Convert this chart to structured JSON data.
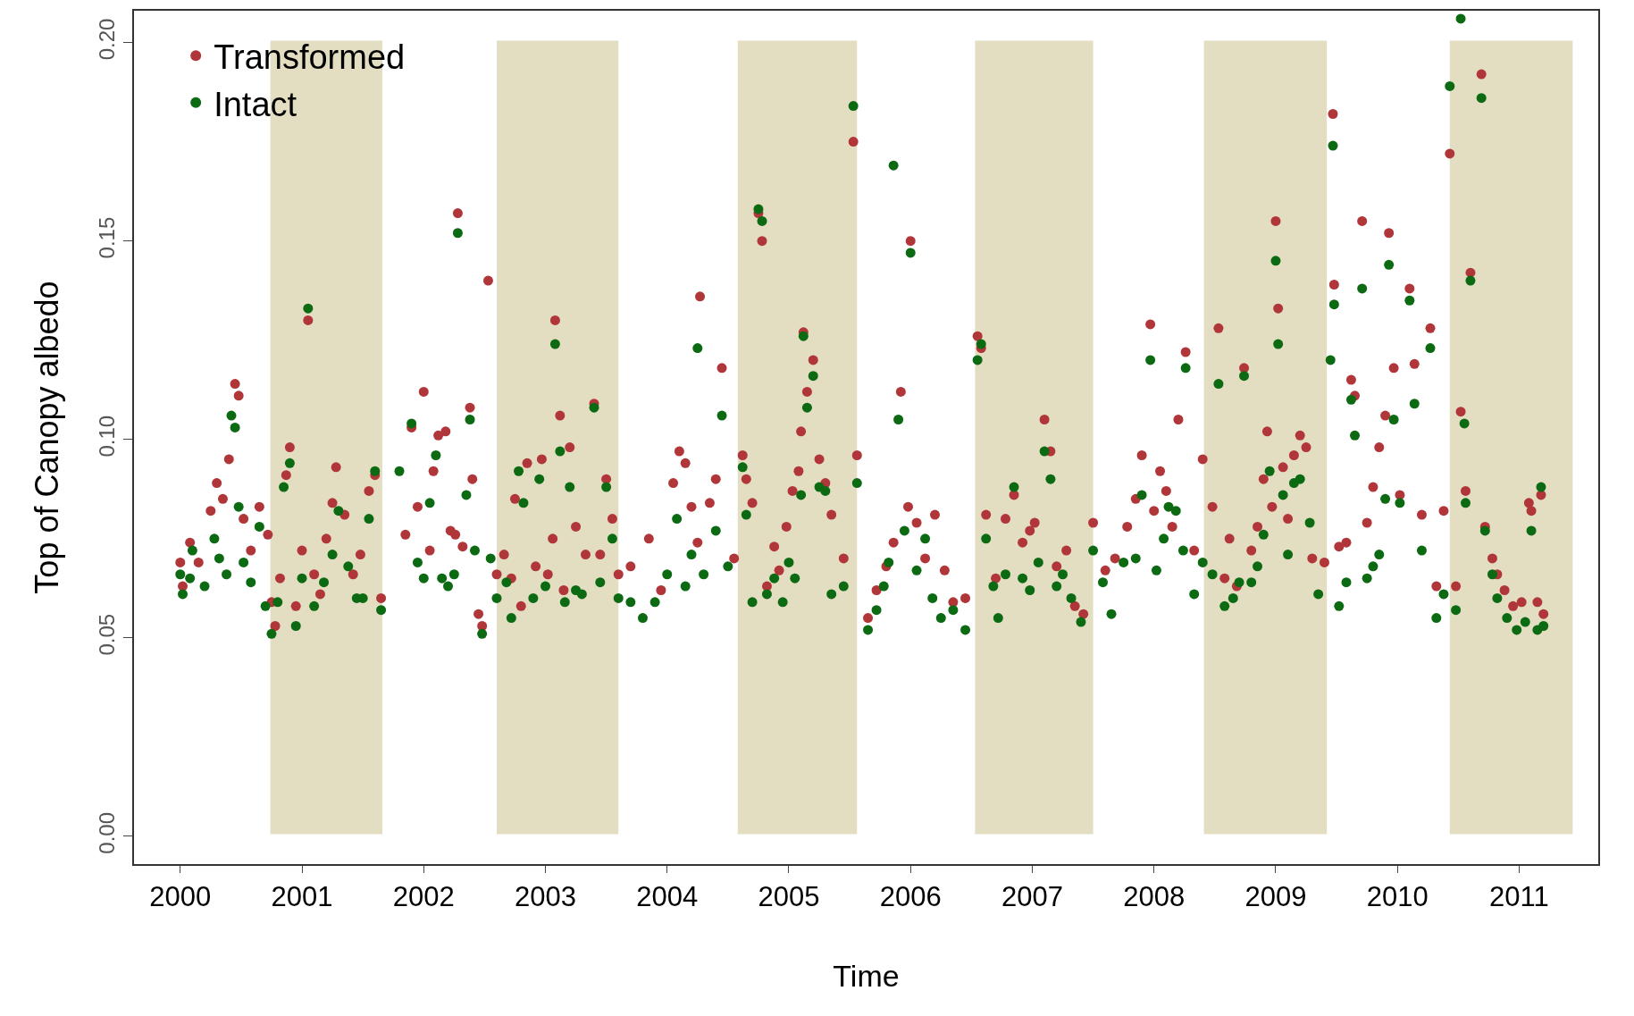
{
  "chart_data": {
    "type": "scatter",
    "xlabel": "Time",
    "ylabel": "Top of Canopy albedo",
    "xlim": [
      1999.62,
      2011.65
    ],
    "ylim": [
      -0.007,
      0.208
    ],
    "xticks": [
      2000,
      2001,
      2002,
      2003,
      2004,
      2005,
      2006,
      2007,
      2008,
      2009,
      2010,
      2011
    ],
    "yticks": [
      {
        "value": 0,
        "label": "0.00"
      },
      {
        "value": 0.05,
        "label": "0.05"
      },
      {
        "value": 0.1,
        "label": "0.10"
      },
      {
        "value": 0.15,
        "label": "0.15"
      },
      {
        "value": 0.2,
        "label": "0.20"
      }
    ],
    "grid": false,
    "legend": "top left",
    "marker": "circle",
    "bands": [
      {
        "axis": "x",
        "from": 2000.74,
        "to": 2001.66,
        "color": "#e3ddc1"
      },
      {
        "axis": "x",
        "from": 2002.6,
        "to": 2003.6,
        "color": "#e3ddc1"
      },
      {
        "axis": "x",
        "from": 2004.58,
        "to": 2005.56,
        "color": "#e3ddc1"
      },
      {
        "axis": "x",
        "from": 2006.53,
        "to": 2007.5,
        "color": "#e3ddc1"
      },
      {
        "axis": "x",
        "from": 2008.41,
        "to": 2009.42,
        "color": "#e3ddc1"
      },
      {
        "axis": "x",
        "from": 2010.43,
        "to": 2011.44,
        "color": "#e3ddc1"
      }
    ],
    "series": [
      {
        "name": "Transformed",
        "color": "#b0363a",
        "x": [
          2000.0,
          2000.02,
          2000.08,
          2000.15,
          2000.25,
          2000.3,
          2000.35,
          2000.4,
          2000.45,
          2000.48,
          2000.52,
          2000.58,
          2000.65,
          2000.72,
          2000.75,
          2000.78,
          2000.82,
          2000.87,
          2000.9,
          2000.95,
          2001.0,
          2001.05,
          2001.1,
          2001.15,
          2001.2,
          2001.25,
          2001.28,
          2001.35,
          2001.42,
          2001.48,
          2001.55,
          2001.6,
          2001.65,
          2001.85,
          2001.9,
          2001.95,
          2002.0,
          2002.05,
          2002.08,
          2002.12,
          2002.18,
          2002.22,
          2002.26,
          2002.28,
          2002.32,
          2002.38,
          2002.4,
          2002.45,
          2002.48,
          2002.53,
          2002.6,
          2002.66,
          2002.72,
          2002.75,
          2002.8,
          2002.85,
          2002.92,
          2002.97,
          2003.02,
          2003.06,
          2003.08,
          2003.12,
          2003.15,
          2003.2,
          2003.25,
          2003.33,
          2003.4,
          2003.45,
          2003.5,
          2003.55,
          2003.6,
          2003.7,
          2003.85,
          2003.95,
          2004.05,
          2004.1,
          2004.15,
          2004.2,
          2004.25,
          2004.27,
          2004.35,
          2004.4,
          2004.45,
          2004.55,
          2004.62,
          2004.65,
          2004.7,
          2004.75,
          2004.78,
          2004.82,
          2004.88,
          2004.92,
          2004.98,
          2005.03,
          2005.08,
          2005.1,
          2005.12,
          2005.15,
          2005.2,
          2005.25,
          2005.3,
          2005.35,
          2005.45,
          2005.53,
          2005.56,
          2005.65,
          2005.72,
          2005.8,
          2005.86,
          2005.92,
          2005.98,
          2006.0,
          2006.05,
          2006.12,
          2006.2,
          2006.28,
          2006.35,
          2006.45,
          2006.55,
          2006.58,
          2006.62,
          2006.7,
          2006.78,
          2006.85,
          2006.92,
          2006.98,
          2007.02,
          2007.1,
          2007.15,
          2007.2,
          2007.28,
          2007.35,
          2007.42,
          2007.5,
          2007.6,
          2007.68,
          2007.78,
          2007.85,
          2007.9,
          2007.97,
          2008.0,
          2008.05,
          2008.1,
          2008.15,
          2008.2,
          2008.26,
          2008.33,
          2008.4,
          2008.48,
          2008.53,
          2008.58,
          2008.62,
          2008.68,
          2008.74,
          2008.8,
          2008.85,
          2008.9,
          2008.93,
          2008.97,
          2009.0,
          2009.02,
          2009.06,
          2009.1,
          2009.15,
          2009.2,
          2009.25,
          2009.3,
          2009.4,
          2009.47,
          2009.48,
          2009.52,
          2009.58,
          2009.62,
          2009.65,
          2009.71,
          2009.75,
          2009.8,
          2009.85,
          2009.9,
          2009.93,
          2009.97,
          2010.02,
          2010.1,
          2010.14,
          2010.2,
          2010.27,
          2010.32,
          2010.38,
          2010.43,
          2010.48,
          2010.52,
          2010.56,
          2010.6,
          2010.69,
          2010.72,
          2010.78,
          2010.82,
          2010.88,
          2010.95,
          2011.02,
          2011.08,
          2011.1,
          2011.15,
          2011.18,
          2011.2
        ],
        "values": [
          0.069,
          0.063,
          0.074,
          0.069,
          0.082,
          0.089,
          0.085,
          0.095,
          0.114,
          0.111,
          0.08,
          0.072,
          0.083,
          0.076,
          0.059,
          0.053,
          0.065,
          0.091,
          0.098,
          0.058,
          0.072,
          0.13,
          0.066,
          0.061,
          0.075,
          0.084,
          0.093,
          0.081,
          0.066,
          0.071,
          0.087,
          0.091,
          0.06,
          0.076,
          0.103,
          0.083,
          0.112,
          0.072,
          0.092,
          0.101,
          0.102,
          0.077,
          0.076,
          0.157,
          0.073,
          0.108,
          0.09,
          0.056,
          0.053,
          0.14,
          0.066,
          0.071,
          0.065,
          0.085,
          0.058,
          0.094,
          0.068,
          0.095,
          0.066,
          0.075,
          0.13,
          0.106,
          0.062,
          0.098,
          0.078,
          0.071,
          0.109,
          0.071,
          0.09,
          0.08,
          0.066,
          0.068,
          0.075,
          0.062,
          0.089,
          0.097,
          0.094,
          0.083,
          0.074,
          0.136,
          0.084,
          0.09,
          0.118,
          0.07,
          0.096,
          0.09,
          0.084,
          0.157,
          0.15,
          0.063,
          0.073,
          0.067,
          0.078,
          0.087,
          0.092,
          0.102,
          0.127,
          0.112,
          0.12,
          0.095,
          0.089,
          0.081,
          0.07,
          0.175,
          0.096,
          0.055,
          0.062,
          0.068,
          0.074,
          0.112,
          0.083,
          0.15,
          0.079,
          0.07,
          0.081,
          0.067,
          0.059,
          0.06,
          0.126,
          0.123,
          0.081,
          0.065,
          0.08,
          0.086,
          0.074,
          0.077,
          0.079,
          0.105,
          0.097,
          0.068,
          0.072,
          0.058,
          0.056,
          0.079,
          0.067,
          0.07,
          0.078,
          0.085,
          0.096,
          0.129,
          0.082,
          0.092,
          0.087,
          0.078,
          0.105,
          0.122,
          0.072,
          0.095,
          0.083,
          0.128,
          0.065,
          0.075,
          0.063,
          0.118,
          0.072,
          0.078,
          0.09,
          0.102,
          0.083,
          0.155,
          0.133,
          0.093,
          0.08,
          0.096,
          0.101,
          0.098,
          0.07,
          0.069,
          0.182,
          0.139,
          0.073,
          0.074,
          0.115,
          0.111,
          0.155,
          0.079,
          0.088,
          0.098,
          0.106,
          0.152,
          0.118,
          0.086,
          0.138,
          0.119,
          0.081,
          0.128,
          0.063,
          0.082,
          0.172,
          0.063,
          0.107,
          0.087,
          0.142,
          0.192,
          0.078,
          0.07,
          0.066,
          0.062,
          0.058,
          0.059,
          0.084,
          0.082,
          0.059,
          0.086,
          0.056
        ]
      },
      {
        "name": "Intact",
        "color": "#0b6a12",
        "x": [
          2000.0,
          2000.02,
          2000.08,
          2000.1,
          2000.2,
          2000.28,
          2000.32,
          2000.38,
          2000.42,
          2000.45,
          2000.48,
          2000.52,
          2000.58,
          2000.65,
          2000.7,
          2000.75,
          2000.8,
          2000.85,
          2000.9,
          2000.95,
          2001.0,
          2001.05,
          2001.1,
          2001.18,
          2001.25,
          2001.3,
          2001.38,
          2001.45,
          2001.5,
          2001.55,
          2001.6,
          2001.65,
          2001.8,
          2001.9,
          2001.95,
          2002.0,
          2002.05,
          2002.1,
          2002.15,
          2002.2,
          2002.25,
          2002.28,
          2002.35,
          2002.38,
          2002.42,
          2002.48,
          2002.55,
          2002.6,
          2002.68,
          2002.72,
          2002.78,
          2002.82,
          2002.9,
          2002.95,
          2003.0,
          2003.08,
          2003.12,
          2003.16,
          2003.2,
          2003.25,
          2003.3,
          2003.4,
          2003.45,
          2003.5,
          2003.55,
          2003.6,
          2003.7,
          2003.8,
          2003.9,
          2004.0,
          2004.08,
          2004.15,
          2004.2,
          2004.25,
          2004.3,
          2004.4,
          2004.45,
          2004.5,
          2004.62,
          2004.65,
          2004.7,
          2004.75,
          2004.78,
          2004.82,
          2004.88,
          2004.95,
          2005.0,
          2005.05,
          2005.1,
          2005.12,
          2005.15,
          2005.2,
          2005.25,
          2005.3,
          2005.35,
          2005.45,
          2005.53,
          2005.56,
          2005.65,
          2005.72,
          2005.78,
          2005.82,
          2005.86,
          2005.9,
          2005.95,
          2006.0,
          2006.05,
          2006.12,
          2006.18,
          2006.25,
          2006.35,
          2006.45,
          2006.55,
          2006.58,
          2006.62,
          2006.68,
          2006.72,
          2006.78,
          2006.85,
          2006.92,
          2006.98,
          2007.05,
          2007.1,
          2007.15,
          2007.2,
          2007.25,
          2007.32,
          2007.4,
          2007.5,
          2007.58,
          2007.65,
          2007.75,
          2007.85,
          2007.9,
          2007.97,
          2008.02,
          2008.08,
          2008.12,
          2008.18,
          2008.24,
          2008.26,
          2008.33,
          2008.4,
          2008.48,
          2008.53,
          2008.58,
          2008.65,
          2008.7,
          2008.74,
          2008.8,
          2008.85,
          2008.9,
          2008.95,
          2009.0,
          2009.02,
          2009.06,
          2009.1,
          2009.15,
          2009.2,
          2009.28,
          2009.35,
          2009.45,
          2009.47,
          2009.48,
          2009.52,
          2009.58,
          2009.62,
          2009.65,
          2009.71,
          2009.75,
          2009.8,
          2009.85,
          2009.9,
          2009.93,
          2009.97,
          2010.02,
          2010.1,
          2010.14,
          2010.2,
          2010.27,
          2010.32,
          2010.38,
          2010.43,
          2010.48,
          2010.52,
          2010.55,
          2010.56,
          2010.6,
          2010.69,
          2010.72,
          2010.78,
          2010.82,
          2010.9,
          2010.98,
          2011.05,
          2011.1,
          2011.15,
          2011.18,
          2011.2
        ],
        "values": [
          0.066,
          0.061,
          0.065,
          0.072,
          0.063,
          0.075,
          0.07,
          0.066,
          0.106,
          0.103,
          0.083,
          0.069,
          0.064,
          0.078,
          0.058,
          0.051,
          0.059,
          0.088,
          0.094,
          0.053,
          0.065,
          0.133,
          0.058,
          0.064,
          0.071,
          0.082,
          0.068,
          0.06,
          0.06,
          0.08,
          0.092,
          0.057,
          0.092,
          0.104,
          0.069,
          0.065,
          0.084,
          0.096,
          0.065,
          0.063,
          0.066,
          0.152,
          0.086,
          0.105,
          0.072,
          0.051,
          0.07,
          0.06,
          0.064,
          0.055,
          0.092,
          0.084,
          0.06,
          0.09,
          0.063,
          0.124,
          0.097,
          0.059,
          0.088,
          0.062,
          0.061,
          0.108,
          0.064,
          0.088,
          0.075,
          0.06,
          0.059,
          0.055,
          0.059,
          0.066,
          0.08,
          0.063,
          0.071,
          0.123,
          0.066,
          0.077,
          0.106,
          0.068,
          0.093,
          0.081,
          0.059,
          0.158,
          0.155,
          0.061,
          0.065,
          0.059,
          0.069,
          0.065,
          0.086,
          0.126,
          0.108,
          0.116,
          0.088,
          0.087,
          0.061,
          0.063,
          0.184,
          0.089,
          0.052,
          0.057,
          0.063,
          0.069,
          0.169,
          0.105,
          0.077,
          0.147,
          0.067,
          0.075,
          0.06,
          0.055,
          0.057,
          0.052,
          0.12,
          0.124,
          0.075,
          0.063,
          0.055,
          0.066,
          0.088,
          0.065,
          0.062,
          0.069,
          0.097,
          0.09,
          0.063,
          0.066,
          0.06,
          0.054,
          0.072,
          0.064,
          0.056,
          0.069,
          0.07,
          0.086,
          0.12,
          0.067,
          0.075,
          0.083,
          0.082,
          0.072,
          0.118,
          0.061,
          0.069,
          0.066,
          0.114,
          0.058,
          0.06,
          0.064,
          0.116,
          0.064,
          0.068,
          0.076,
          0.092,
          0.145,
          0.124,
          0.086,
          0.071,
          0.089,
          0.09,
          0.079,
          0.061,
          0.12,
          0.174,
          0.134,
          0.058,
          0.064,
          0.11,
          0.101,
          0.138,
          0.065,
          0.068,
          0.071,
          0.085,
          0.144,
          0.105,
          0.084,
          0.135,
          0.109,
          0.072,
          0.123,
          0.055,
          0.061,
          0.189,
          0.057,
          0.206,
          0.104,
          0.084,
          0.14,
          0.186,
          0.077,
          0.066,
          0.06,
          0.055,
          0.052,
          0.054,
          0.077,
          0.052,
          0.088,
          0.053
        ]
      }
    ]
  }
}
